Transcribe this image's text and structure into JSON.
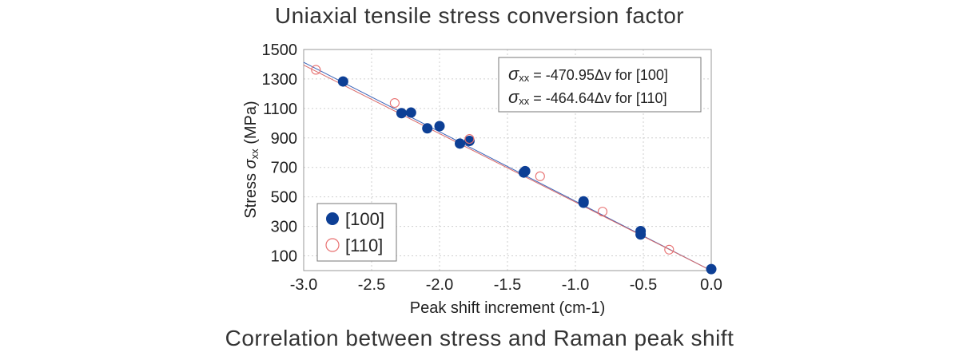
{
  "title": "Uniaxial tensile stress conversion factor",
  "caption": "Correlation between stress and Raman peak shift",
  "chart_data": {
    "type": "scatter",
    "xlabel": "Peak shift increment (cm-1)",
    "ylabel_prefix": "Stress ",
    "ylabel_symbol": "σ",
    "ylabel_sub": "xx",
    "ylabel_suffix": " (MPa)",
    "xlim": [
      -3.0,
      0.0
    ],
    "ylim": [
      0,
      1500
    ],
    "x_ticks": [
      -3.0,
      -2.5,
      -2.0,
      -1.5,
      -1.0,
      -0.5,
      0.0
    ],
    "x_tick_labels": [
      "-3.0",
      "-2.5",
      "-2.0",
      "-1.5",
      "-1.0",
      "-0.5",
      "0.0"
    ],
    "y_ticks": [
      100,
      300,
      500,
      700,
      900,
      1100,
      1300,
      1500
    ],
    "y_tick_labels": [
      "100",
      "300",
      "500",
      "700",
      "900",
      "1100",
      "1300",
      "1500"
    ],
    "grid": true,
    "legend_position": "bottom-left",
    "series": [
      {
        "name": "[100]",
        "marker": "filled-circle",
        "color": "#0d3f95",
        "points": [
          [
            -2.71,
            1283
          ],
          [
            -2.28,
            1068
          ],
          [
            -2.21,
            1072
          ],
          [
            -2.09,
            965
          ],
          [
            -2.0,
            980
          ],
          [
            -1.85,
            862
          ],
          [
            -1.78,
            880
          ],
          [
            -1.38,
            665
          ],
          [
            -1.37,
            675
          ],
          [
            -0.94,
            470
          ],
          [
            -0.94,
            460
          ],
          [
            -0.52,
            268
          ],
          [
            -0.52,
            245
          ],
          [
            0.0,
            10
          ]
        ],
        "fit": {
          "slope": -470.95,
          "intercept": 0,
          "color": "#3b64b8"
        },
        "equation": {
          "symbol": "σ",
          "sub": "xx",
          "text": " = -470.95Δv for [100]"
        }
      },
      {
        "name": "[110]",
        "marker": "open-circle",
        "color": "#e87070",
        "points": [
          [
            -2.91,
            1362
          ],
          [
            -2.33,
            1137
          ],
          [
            -1.78,
            893
          ],
          [
            -1.26,
            640
          ],
          [
            -0.8,
            400
          ],
          [
            -0.31,
            142
          ]
        ],
        "fit": {
          "slope": -464.64,
          "intercept": 0,
          "color": "#d96a6a"
        },
        "equation": {
          "symbol": "σ",
          "sub": "xx",
          "text": " = -464.64Δv for [110]"
        }
      }
    ]
  }
}
